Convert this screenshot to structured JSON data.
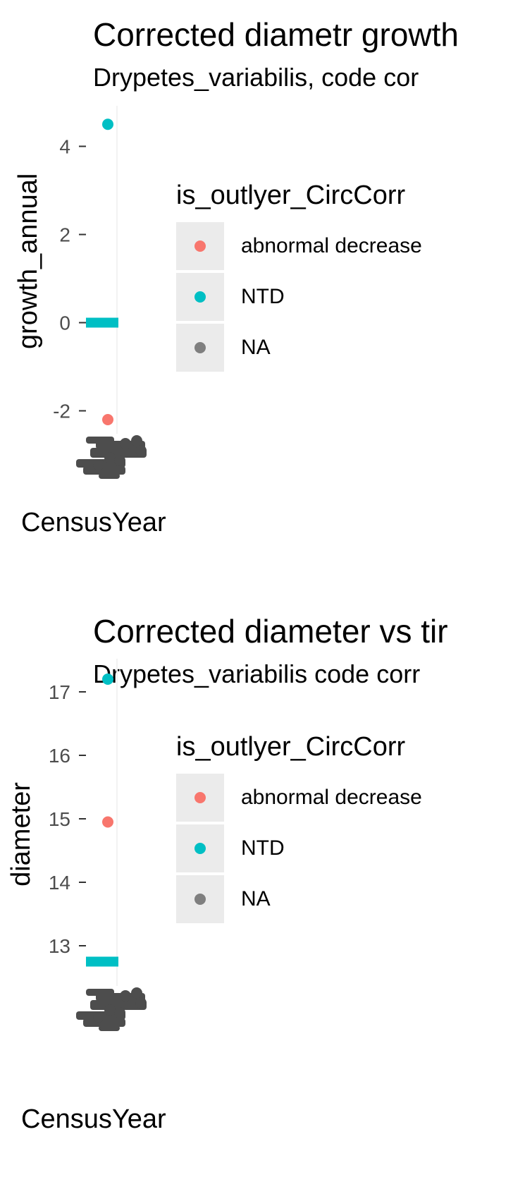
{
  "chart_data": [
    {
      "type": "scatter",
      "title": "Corrected diametr growth",
      "subtitle": "Drypetes_variabilis, code cor",
      "xlabel": "CensusYear",
      "ylabel": "growth_annual",
      "ylim": [
        -2.6,
        4.6
      ],
      "yticks": [
        "4",
        "2",
        "0",
        "-2"
      ],
      "ytick_values": [
        4,
        2,
        0,
        -2
      ],
      "legend": {
        "title": "is_outlyer_CircCorr",
        "placement": "right",
        "items": [
          {
            "label": "abnormal decrease",
            "color": "#f8766d"
          },
          {
            "label": "NTD",
            "color": "#00bfc4"
          },
          {
            "label": "NA",
            "color": "#7f7f7f"
          }
        ]
      },
      "points": [
        {
          "y": 4.5,
          "group": "NTD"
        },
        {
          "y": -2.2,
          "group": "abnormal decrease"
        }
      ],
      "segments": [
        {
          "y": 0,
          "group": "NTD"
        }
      ]
    },
    {
      "type": "scatter",
      "title": "Corrected diameter vs tir",
      "subtitle": "Drypetes_variabilis code corr",
      "xlabel": "CensusYear",
      "ylabel": "diameter",
      "ylim": [
        12.6,
        17.3
      ],
      "yticks": [
        "17",
        "16",
        "15",
        "14",
        "13"
      ],
      "ytick_values": [
        17,
        16,
        15,
        14,
        13
      ],
      "legend": {
        "title": "is_outlyer_CircCorr",
        "placement": "right",
        "items": [
          {
            "label": "abnormal decrease",
            "color": "#f8766d"
          },
          {
            "label": "NTD",
            "color": "#00bfc4"
          },
          {
            "label": "NA",
            "color": "#7f7f7f"
          }
        ]
      },
      "points": [
        {
          "y": 17.2,
          "group": "NTD"
        },
        {
          "y": 14.95,
          "group": "abnormal decrease"
        }
      ],
      "segments": [
        {
          "y": 12.75,
          "group": "NTD"
        }
      ]
    }
  ]
}
